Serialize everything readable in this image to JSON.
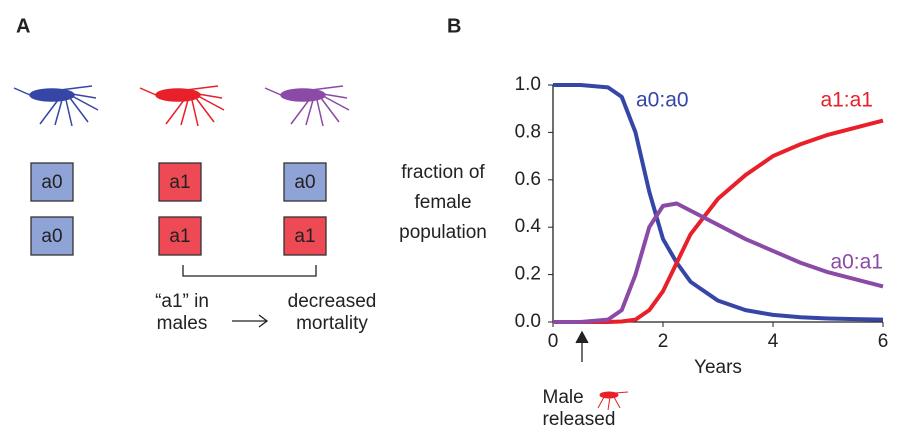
{
  "panel_a": {
    "label": "A",
    "columns": [
      [
        "a0",
        "a0"
      ],
      [
        "a1",
        "a1"
      ],
      [
        "a0",
        "a1"
      ]
    ],
    "cause": [
      "“a1” in",
      "males"
    ],
    "effect": [
      "decreased",
      "mortality"
    ]
  },
  "chart_data": {
    "type": "line",
    "panel_label": "B",
    "xlabel": "Years",
    "ylabel": [
      "fraction of",
      "female",
      "population"
    ],
    "x": [
      0,
      0.5,
      1,
      1.25,
      1.5,
      1.75,
      2,
      2.25,
      2.5,
      3,
      3.5,
      4,
      4.5,
      5,
      5.5,
      6
    ],
    "series": [
      {
        "name": "a0:a0",
        "color": "#3646a6",
        "values": [
          1,
          1,
          0.99,
          0.95,
          0.8,
          0.55,
          0.35,
          0.25,
          0.17,
          0.09,
          0.05,
          0.03,
          0.02,
          0.015,
          0.012,
          0.01
        ]
      },
      {
        "name": "a1:a1",
        "color": "#e8202a",
        "values": [
          0,
          0,
          0,
          0.002,
          0.01,
          0.05,
          0.13,
          0.25,
          0.37,
          0.52,
          0.62,
          0.7,
          0.75,
          0.79,
          0.82,
          0.85
        ]
      },
      {
        "name": "a0:a1",
        "color": "#8a4aa6",
        "values": [
          0,
          0,
          0.01,
          0.05,
          0.2,
          0.4,
          0.49,
          0.5,
          0.47,
          0.41,
          0.35,
          0.3,
          0.25,
          0.21,
          0.18,
          0.15
        ]
      }
    ],
    "xlim": [
      0,
      6
    ],
    "ylim": [
      0,
      1
    ],
    "xticks": [
      0,
      2,
      4,
      6
    ],
    "yticks": [
      {
        "value": 0,
        "label": "0.0"
      },
      0.2,
      0.4,
      0.6,
      0.8,
      {
        "value": 1,
        "label": "1.0"
      }
    ],
    "annotation": {
      "x": 0.5,
      "text": [
        "Male",
        "released"
      ]
    }
  }
}
